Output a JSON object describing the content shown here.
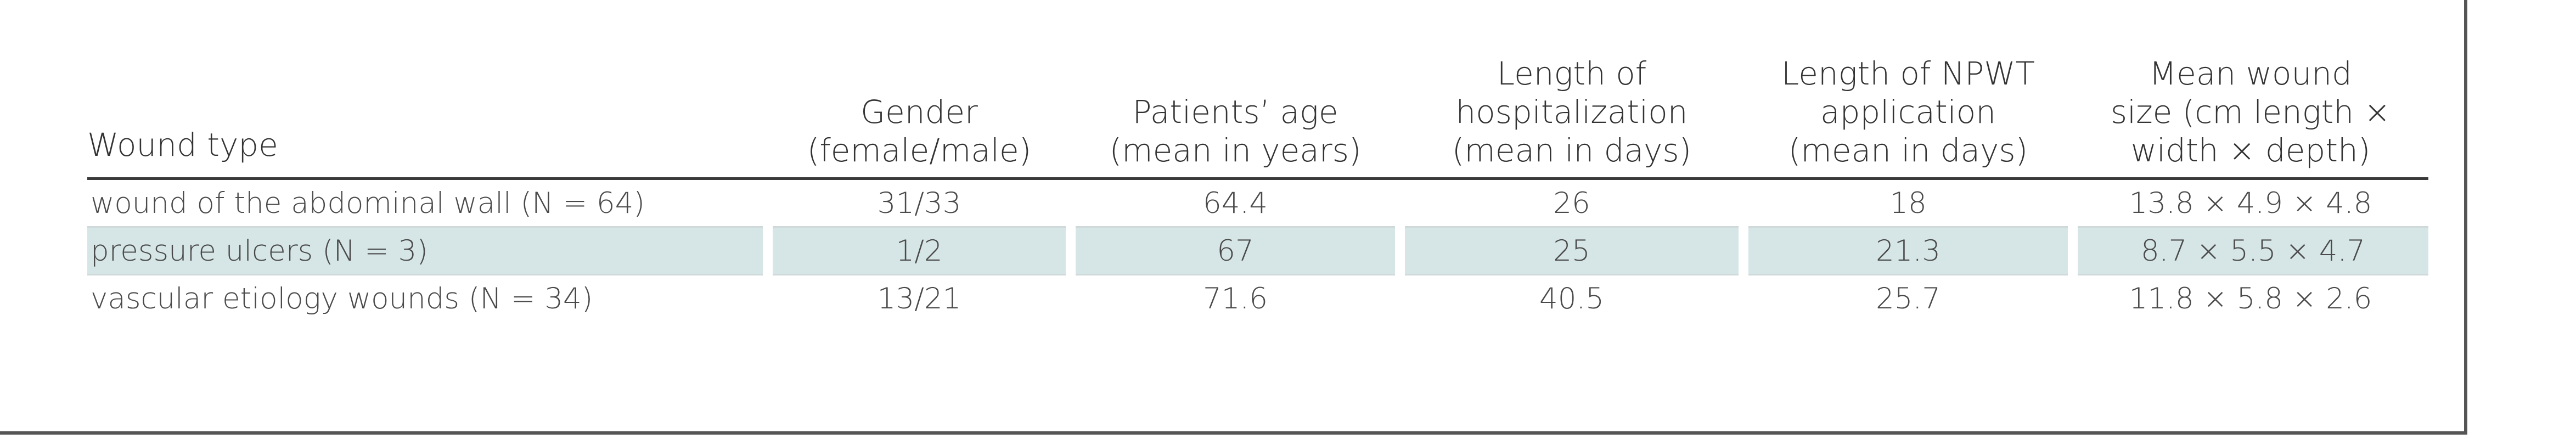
{
  "table": {
    "headers": [
      [
        "Wound type"
      ],
      [
        "Gender",
        "(female/male)"
      ],
      [
        "Patients’ age",
        "(mean in years)"
      ],
      [
        "Length of",
        "hospitalization",
        "(mean in days)"
      ],
      [
        "Length of NPWT",
        "application",
        "(mean in days)"
      ],
      [
        "Mean wound",
        "size (cm length ×",
        "width × depth)"
      ]
    ],
    "rows": [
      [
        "wound of the abdominal wall (N = 64)",
        "31/33",
        "64.4",
        "26",
        "18",
        "13.8 × 4.9 × 4.8"
      ],
      [
        "pressure ulcers (N = 3)",
        "1/2",
        "67",
        "25",
        "21.3",
        "8.7 × 5.5 × 4.7"
      ],
      [
        "vascular etiology wounds (N = 34)",
        "13/21",
        "71.6",
        "40.5",
        "25.7",
        "11.8 × 5.8 × 2.6"
      ]
    ],
    "shaded_row_color": "#d6e6e6"
  }
}
